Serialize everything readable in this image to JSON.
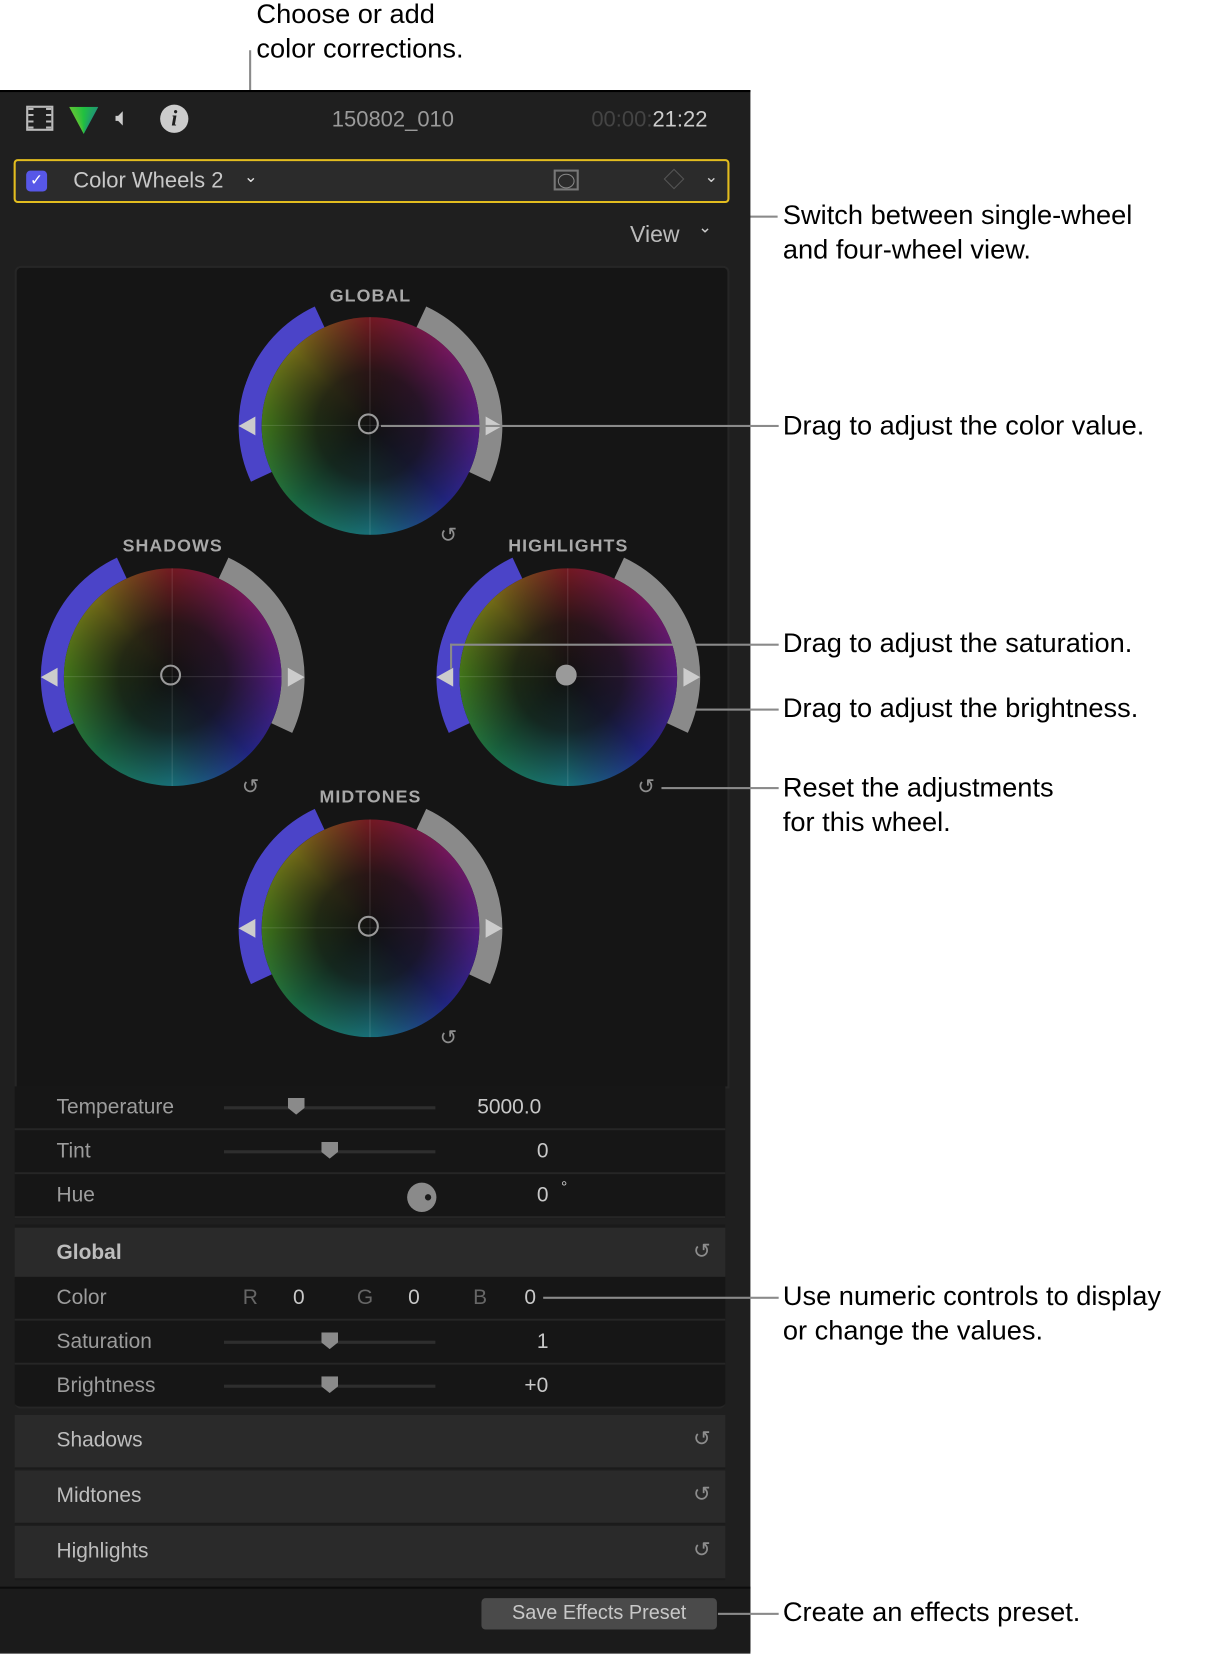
{
  "annotations": {
    "choose": [
      "Choose or add",
      "color corrections."
    ],
    "view": [
      "Switch between single-wheel",
      "and four-wheel view."
    ],
    "color_value": "Drag to adjust the color value.",
    "saturation": "Drag to adjust the saturation.",
    "brightness": "Drag to adjust the brightness.",
    "reset": [
      "Reset the adjustments",
      "for this wheel."
    ],
    "numeric": [
      "Use numeric controls to display",
      "or change the values."
    ],
    "preset": "Create an effects preset."
  },
  "header": {
    "icons": [
      "film-icon",
      "color-triangle-icon",
      "speaker-icon",
      "info-icon"
    ],
    "clip_name": "150802_010",
    "timecode_dim": "00:00:",
    "timecode": "21:22"
  },
  "effect": {
    "enabled": true,
    "name": "Color Wheels 2",
    "accent": "#e3bd1f",
    "checkbox_color": "#5757e8"
  },
  "view_label": "View",
  "wheels": {
    "global": "GLOBAL",
    "shadows": "SHADOWS",
    "highlights": "HIGHLIGHTS",
    "midtones": "MIDTONES"
  },
  "sliders": {
    "temperature": {
      "label": "Temperature",
      "value": "5000.0",
      "position": 0.34
    },
    "tint": {
      "label": "Tint",
      "value": "0",
      "position": 0.5
    },
    "hue": {
      "label": "Hue",
      "value": "0",
      "unit": "°"
    }
  },
  "global_section": {
    "title": "Global",
    "color": {
      "label": "Color",
      "r_label": "R",
      "r": "0",
      "g_label": "G",
      "g": "0",
      "b_label": "B",
      "b": "0"
    },
    "saturation": {
      "label": "Saturation",
      "value": "1",
      "position": 0.5
    },
    "brightness": {
      "label": "Brightness",
      "value": "+0",
      "position": 0.5
    }
  },
  "sections": [
    "Shadows",
    "Midtones",
    "Highlights"
  ],
  "save_button": "Save Effects Preset"
}
